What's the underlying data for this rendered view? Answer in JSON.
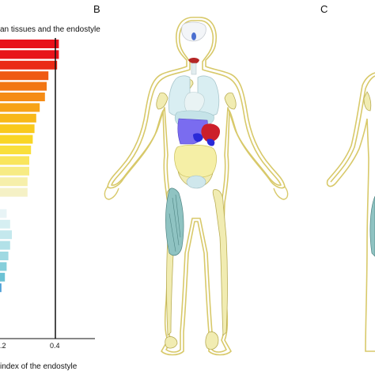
{
  "panels": {
    "B": "B",
    "C": "C"
  },
  "colors": {
    "outline": "#d8c96a",
    "bone": "#f1ecb2",
    "heart": "#cc1f2a",
    "liver": "#7a6cf0",
    "kidney": "#2a2ad8",
    "lung": "#d9eef2",
    "stomach": "#c5e3e8",
    "intestine": "#f5efa6",
    "muscle": "#8fc3c2",
    "thyroid": "#b52626",
    "brain": "#4b6fd0"
  },
  "chart_data": {
    "type": "bar",
    "orientation": "horizontal",
    "title": "an tissues and the endostyle",
    "xlabel": "index of the endostyle",
    "xtick_labels": [
      ".2",
      "0.4"
    ],
    "reference_line_at": 0.4,
    "xlim": [
      0,
      0.45
    ],
    "series": [
      {
        "values": [
          0.42,
          0.42,
          0.41,
          0.36,
          0.35,
          0.34,
          0.31,
          0.29,
          0.28,
          0.27,
          0.26,
          0.25,
          0.25,
          0.24,
          0.24,
          0.08,
          0.12,
          0.14,
          0.15,
          0.14,
          0.13,
          0.12,
          0.11,
          0.09,
          0.08,
          0.07,
          0.05,
          0.04
        ],
        "colors": [
          "#e8111a",
          "#e8141a",
          "#ea2a15",
          "#ef5a13",
          "#f27614",
          "#f58c16",
          "#f7a317",
          "#f8b818",
          "#f9c91c",
          "#f9d524",
          "#f9df3b",
          "#f9e55c",
          "#f7eb84",
          "#f6efaa",
          "#f5f1c6",
          "#f2f6f8",
          "#e8f4f6",
          "#d6eff2",
          "#c4e8ed",
          "#b2e1e8",
          "#9fd9e2",
          "#86cfdb",
          "#6cc2d4",
          "#4d9fd6",
          "#3d78da",
          "#2f56dc",
          "#2637dc",
          "#2222d8"
        ]
      }
    ]
  }
}
